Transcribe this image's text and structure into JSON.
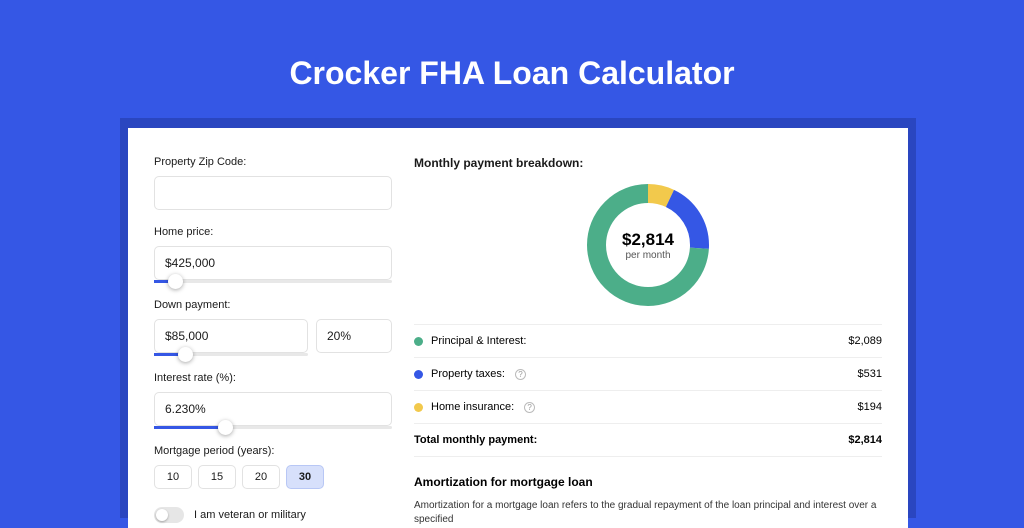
{
  "page": {
    "title": "Crocker FHA Loan Calculator",
    "background_color": "#3557e5",
    "panel_shadow_color": "#2a46c0"
  },
  "form": {
    "zip": {
      "label": "Property Zip Code:",
      "value": ""
    },
    "home_price": {
      "label": "Home price:",
      "value": "$425,000",
      "slider_pct": 9
    },
    "down_payment": {
      "label": "Down payment:",
      "value": "$85,000",
      "pct_value": "20%",
      "slider_pct": 20
    },
    "interest_rate": {
      "label": "Interest rate (%):",
      "value": "6.230%",
      "slider_pct": 30
    },
    "mortgage_period": {
      "label": "Mortgage period (years):",
      "options": [
        "10",
        "15",
        "20",
        "30"
      ],
      "selected": "30"
    },
    "veteran": {
      "label": "I am veteran or military",
      "checked": false
    }
  },
  "breakdown": {
    "title": "Monthly payment breakdown:",
    "center_value": "$2,814",
    "center_label": "per month",
    "items": [
      {
        "label": "Principal & Interest:",
        "amount": "$2,089",
        "pct": 74,
        "color": "#4cae89",
        "info": false
      },
      {
        "label": "Property taxes:",
        "amount": "$531",
        "pct": 19,
        "color": "#3557e5",
        "info": true
      },
      {
        "label": "Home insurance:",
        "amount": "$194",
        "pct": 7,
        "color": "#f2c94c",
        "info": true
      }
    ],
    "total": {
      "label": "Total monthly payment:",
      "amount": "$2,814"
    },
    "donut": {
      "size": 122,
      "stroke": 19,
      "bg": "#ffffff"
    }
  },
  "amortization": {
    "title": "Amortization for mortgage loan",
    "text": "Amortization for a mortgage loan refers to the gradual repayment of the loan principal and interest over a specified"
  }
}
